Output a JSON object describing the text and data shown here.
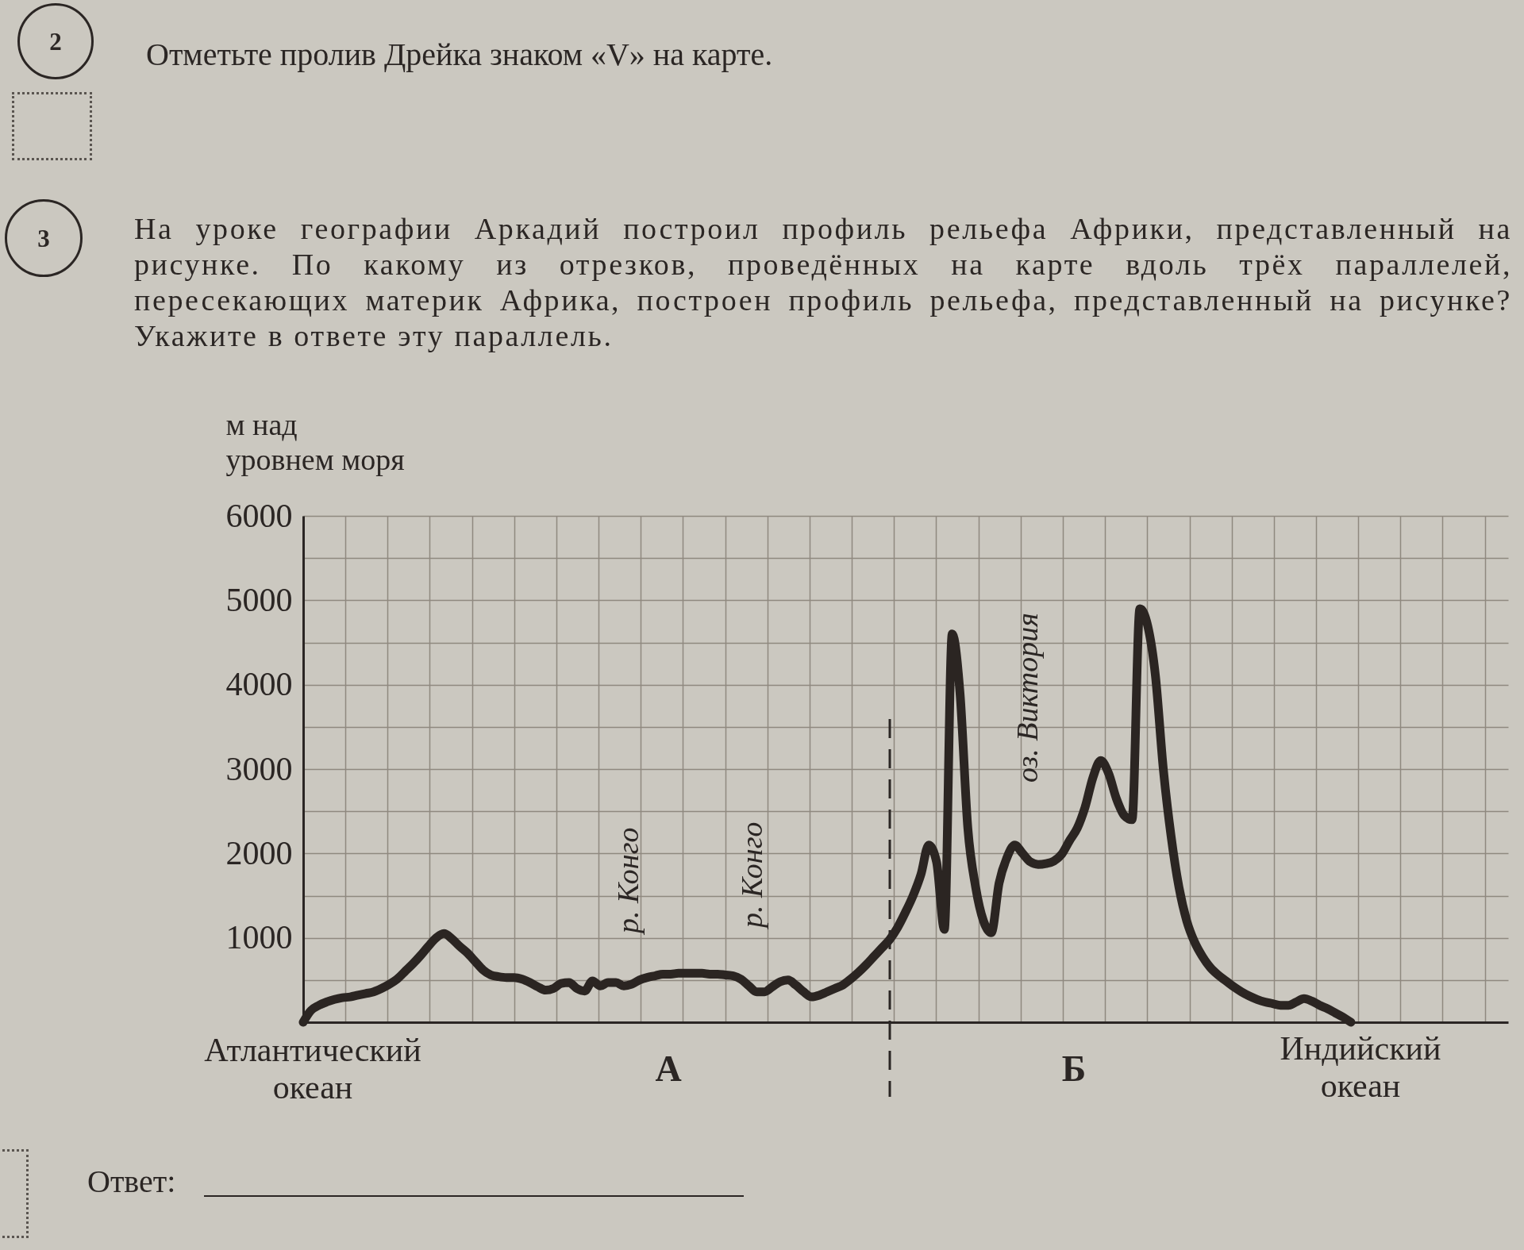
{
  "chart_data": {
    "type": "line",
    "title": "На уроке географии Аркадий построил профиль рельефа Африки, представленный на рисунке. По какому из отрезков, проведённых на карте вдоль трёх параллелей, пересекающих материк Африка, построен профиль рельефа, представленный на рисунке? Укажите в ответе эту параллель.",
    "ylabel": "м над уровнем моря",
    "categories": [
      null,
      null,
      null,
      null,
      null,
      null,
      null,
      null,
      null,
      null,
      null,
      null,
      null,
      null,
      null,
      null,
      null,
      null,
      null,
      null,
      null,
      null,
      null,
      null,
      null,
      null,
      null,
      null,
      null,
      null,
      null,
      null,
      null,
      null,
      null,
      null,
      null,
      null,
      null,
      null,
      null,
      null,
      null,
      null,
      null,
      null,
      null,
      null,
      null,
      null,
      null,
      null,
      null,
      null,
      null,
      null,
      null,
      null,
      null,
      null,
      null,
      null,
      null,
      null,
      null,
      null,
      null,
      null,
      null,
      null,
      null,
      null,
      null,
      null,
      null,
      null,
      null,
      null,
      null,
      null,
      null,
      null,
      null,
      null,
      null,
      null,
      null,
      null,
      null,
      null,
      null,
      null,
      null,
      null,
      null,
      null,
      null,
      null,
      null,
      null,
      null,
      null,
      null,
      null,
      null,
      null,
      null,
      null,
      null,
      null,
      null,
      null,
      null,
      null,
      null,
      null,
      null,
      null,
      null,
      null,
      null,
      null,
      null,
      null,
      null,
      null,
      null,
      null,
      null,
      null,
      null,
      null,
      null,
      null,
      null
    ],
    "series": [
      {
        "color": "#2b2522",
        "values": [
          0,
          140,
          200,
          240,
          270,
          290,
          300,
          320,
          340,
          360,
          400,
          450,
          510,
          600,
          690,
          790,
          900,
          1000,
          1050,
          990,
          900,
          820,
          720,
          620,
          560,
          540,
          530,
          530,
          510,
          470,
          420,
          380,
          400,
          460,
          470,
          400,
          370,
          490,
          430,
          470,
          470,
          430,
          450,
          500,
          530,
          550,
          570,
          570,
          580,
          580,
          580,
          580,
          570,
          570,
          560,
          550,
          510,
          430,
          360,
          360,
          420,
          480,
          500,
          440,
          360,
          300,
          320,
          360,
          400,
          440,
          510,
          590,
          680,
          780,
          880,
          980,
          1120,
          1300,
          1500,
          1750,
          2100,
          1900,
          1100,
          4600,
          3900,
          2300,
          1600,
          1200,
          1060,
          1650,
          1950,
          2100,
          2000,
          1900,
          1870,
          1880,
          1910,
          1990,
          2150,
          2300,
          2550,
          2900,
          3100,
          2950,
          2650,
          2450,
          2400,
          4900,
          4700,
          4100,
          3000,
          2200,
          1600,
          1200,
          950,
          780,
          650,
          560,
          490,
          420,
          360,
          310,
          270,
          240,
          220,
          200,
          200,
          240,
          280,
          250,
          200,
          160,
          110,
          60,
          0
        ]
      }
    ],
    "ylim": [
      0,
      6000
    ],
    "yticks": [
      {
        "value": 500,
        "label": null
      },
      1000,
      {
        "value": 1500,
        "label": null
      },
      2000,
      {
        "value": 2500,
        "label": null
      },
      3000,
      {
        "value": 3500,
        "label": null
      },
      4000,
      {
        "value": 4500,
        "label": null
      },
      5000,
      {
        "value": 5500,
        "label": null
      },
      6000
    ],
    "grid": true,
    "tick_labels": "y",
    "annotations": [
      "2",
      "Отметьте пролив Дрейка знаком «V» на карте.",
      "3",
      "Атлантический океан",
      "р. Конго",
      "р. Конго",
      "оз. Виктория",
      "А",
      "Б",
      "Индийский океан",
      "Ответ:"
    ]
  }
}
